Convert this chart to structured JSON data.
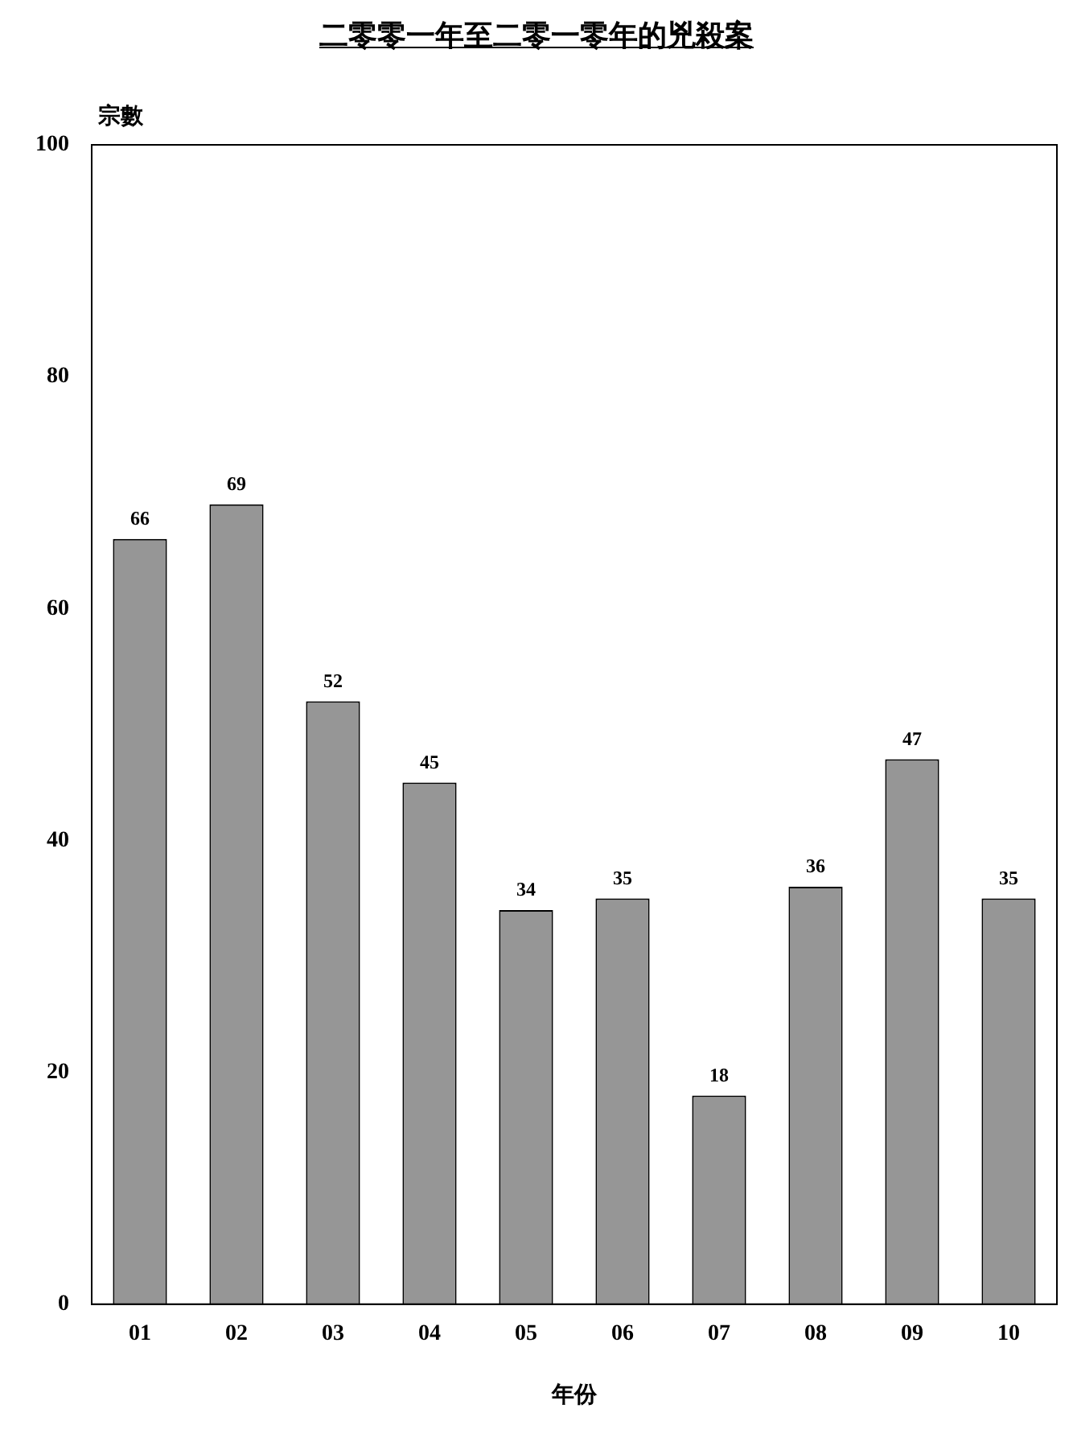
{
  "chart_data": {
    "type": "bar",
    "title": "二零零一年至二零一零年的兇殺案",
    "xlabel": "年份",
    "ylabel": "宗數",
    "categories": [
      "01",
      "02",
      "03",
      "04",
      "05",
      "06",
      "07",
      "08",
      "09",
      "10"
    ],
    "values": [
      66,
      69,
      52,
      45,
      34,
      35,
      18,
      36,
      47,
      35
    ],
    "color": "#969696",
    "ylim": [
      0,
      100
    ],
    "yticks": [
      0,
      20,
      40,
      60,
      80,
      100
    ],
    "grid": false,
    "legend": false,
    "data_labels": true
  }
}
